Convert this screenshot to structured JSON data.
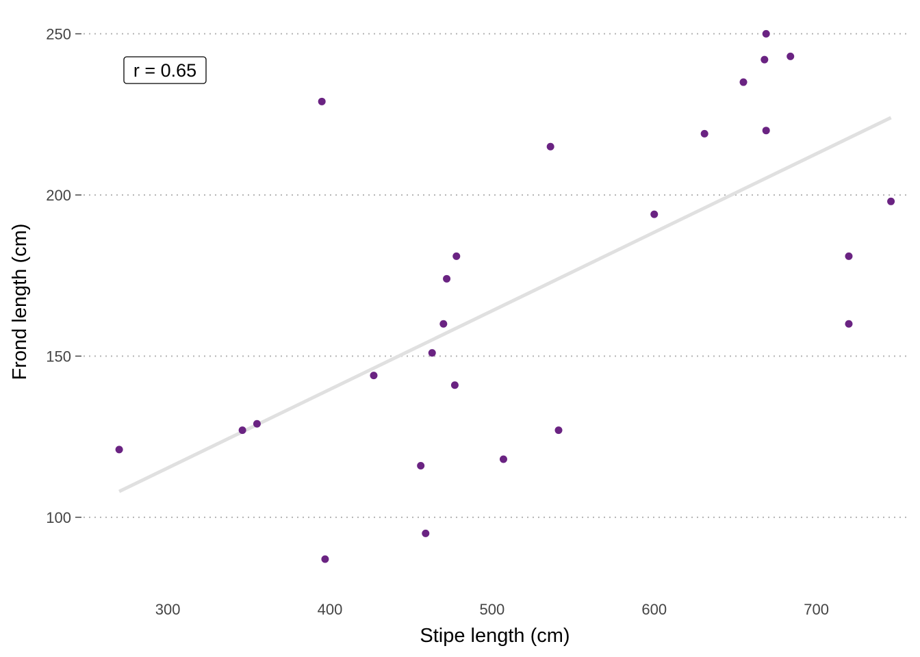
{
  "chart_data": {
    "type": "scatter",
    "title": "",
    "xlabel": "Stipe length (cm)",
    "ylabel": "Frond length (cm)",
    "xlim": [
      248,
      758
    ],
    "ylim": [
      80,
      252
    ],
    "x_ticks": [
      300,
      400,
      500,
      600,
      700
    ],
    "y_ticks": [
      100,
      150,
      200,
      250
    ],
    "grid": "horizontal dotted",
    "annotation": "r = 0.65",
    "point_color": "#6a2382",
    "trend_color": "#e0e0e0",
    "points": [
      {
        "x": 270,
        "y": 121
      },
      {
        "x": 346,
        "y": 127
      },
      {
        "x": 355,
        "y": 129
      },
      {
        "x": 395,
        "y": 229
      },
      {
        "x": 397,
        "y": 87
      },
      {
        "x": 427,
        "y": 144
      },
      {
        "x": 456,
        "y": 116
      },
      {
        "x": 459,
        "y": 95
      },
      {
        "x": 463,
        "y": 151
      },
      {
        "x": 470,
        "y": 160
      },
      {
        "x": 472,
        "y": 174
      },
      {
        "x": 477,
        "y": 141
      },
      {
        "x": 478,
        "y": 181
      },
      {
        "x": 507,
        "y": 118
      },
      {
        "x": 536,
        "y": 215
      },
      {
        "x": 541,
        "y": 127
      },
      {
        "x": 600,
        "y": 194
      },
      {
        "x": 631,
        "y": 219
      },
      {
        "x": 655,
        "y": 235
      },
      {
        "x": 668,
        "y": 242
      },
      {
        "x": 669,
        "y": 250
      },
      {
        "x": 669,
        "y": 220
      },
      {
        "x": 684,
        "y": 243
      },
      {
        "x": 720,
        "y": 181
      },
      {
        "x": 720,
        "y": 160
      },
      {
        "x": 746,
        "y": 198
      }
    ],
    "trend_line": {
      "x": [
        270,
        746
      ],
      "y": [
        108,
        224
      ]
    }
  }
}
